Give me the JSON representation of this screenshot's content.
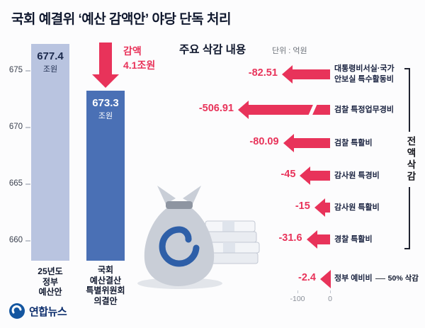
{
  "colors": {
    "red": "#e8335a",
    "bar_light": "#b9c4e0",
    "bar_dark": "#4a70b5",
    "navy": "#10182e",
    "logo_blue": "#1456a0"
  },
  "title": {
    "prefix": "국회 예결위 ",
    "highlight": "‘예산 감액안’",
    "suffix": " 야당 단독 처리"
  },
  "budget_chart": {
    "yticks": [
      "675",
      "670",
      "665",
      "660"
    ],
    "bars": [
      {
        "value_label": "677.4",
        "unit": "조원",
        "category_lines": [
          "25년도",
          "정부",
          "예산안"
        ]
      },
      {
        "value_label": "673.3",
        "unit": "조원",
        "category_lines": [
          "국회",
          "예산결산",
          "특별위원회",
          "의결안"
        ]
      }
    ],
    "reduction": {
      "line1": "감액",
      "line2": "4.1조원"
    }
  },
  "cuts_chart": {
    "title": "주요 삭감 내용",
    "unit_label": "단위 : 억원",
    "rows": [
      {
        "value": -82.51,
        "value_label": "-82.51",
        "label_lines": [
          "대통령비서실·국가",
          "안보실 특수활동비"
        ]
      },
      {
        "value": -506.91,
        "value_label": "-506.91",
        "label_lines": [
          "검찰 특정업무경비"
        ],
        "truncated": true
      },
      {
        "value": -80.09,
        "value_label": "-80.09",
        "label_lines": [
          "검찰 특활비"
        ]
      },
      {
        "value": -45,
        "value_label": "-45",
        "label_lines": [
          "감사원 특경비"
        ]
      },
      {
        "value": -15,
        "value_label": "-15",
        "label_lines": [
          "감사원 특활비"
        ]
      },
      {
        "value": -31.6,
        "value_label": "-31.6",
        "label_lines": [
          "경찰 특활비"
        ]
      },
      {
        "value": -2.4,
        "value_label": "-2.4",
        "label_lines": [
          "정부 예비비"
        ],
        "note": "50% 삭감"
      }
    ],
    "axis_labels": [
      "-100",
      "0"
    ],
    "bracket_label": "전액삭감"
  },
  "logo": {
    "text": "연합뉴스"
  },
  "chart_data": [
    {
      "type": "bar",
      "title": "국회 예결위 ‘예산 감액안’ 야당 단독 처리",
      "categories": [
        "25년도 정부 예산안",
        "국회 예산결산특별위원회 의결안"
      ],
      "values": [
        677.4,
        673.3
      ],
      "unit": "조원",
      "yticks": [
        675,
        670,
        665,
        660
      ],
      "ylim": [
        658,
        678
      ],
      "annotation": "감액 4.1조원"
    },
    {
      "type": "bar",
      "orientation": "horizontal",
      "title": "주요 삭감 내용",
      "unit": "억원",
      "categories": [
        "대통령비서실·국가안보실 특수활동비",
        "검찰 특정업무경비",
        "검찰 특활비",
        "감사원 특경비",
        "감사원 특활비",
        "경찰 특활비",
        "정부 예비비"
      ],
      "values": [
        -82.51,
        -506.91,
        -80.09,
        -45,
        -15,
        -31.6,
        -2.4
      ],
      "xticks": [
        -100,
        0
      ],
      "annotations": [
        "전액삭감",
        "정부 예비비 50% 삭감"
      ]
    }
  ]
}
